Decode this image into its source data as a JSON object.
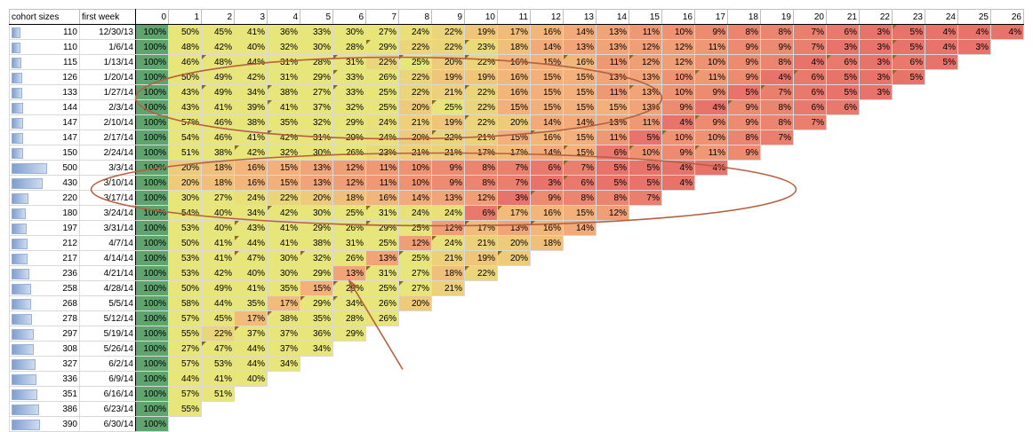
{
  "chart_data": {
    "type": "table",
    "title": "",
    "headers": {
      "cohort_sizes": "cohort sizes",
      "first_week": "first week",
      "periods": [
        "0",
        "1",
        "2",
        "3",
        "4",
        "5",
        "6",
        "7",
        "8",
        "9",
        "10",
        "11",
        "12",
        "13",
        "14",
        "15",
        "16",
        "17",
        "18",
        "19",
        "20",
        "21",
        "22",
        "23",
        "24",
        "25",
        "26"
      ]
    },
    "rows": [
      {
        "size": 110,
        "week": "12/30/13",
        "values": [
          100,
          50,
          45,
          41,
          36,
          33,
          30,
          27,
          24,
          22,
          19,
          17,
          16,
          14,
          13,
          11,
          10,
          9,
          8,
          8,
          7,
          6,
          3,
          5,
          4,
          4,
          4
        ]
      },
      {
        "size": 110,
        "week": "1/6/14",
        "values": [
          100,
          48,
          42,
          40,
          32,
          30,
          28,
          29,
          22,
          22,
          23,
          18,
          14,
          13,
          13,
          12,
          12,
          11,
          9,
          9,
          7,
          3,
          3,
          5,
          4,
          3
        ]
      },
      {
        "size": 115,
        "week": "1/13/14",
        "values": [
          100,
          46,
          48,
          44,
          31,
          28,
          31,
          22,
          25,
          20,
          22,
          16,
          15,
          16,
          11,
          12,
          12,
          10,
          9,
          8,
          4,
          6,
          3,
          6,
          5
        ]
      },
      {
        "size": 126,
        "week": "1/20/14",
        "values": [
          100,
          50,
          49,
          42,
          31,
          29,
          33,
          26,
          22,
          19,
          19,
          16,
          15,
          15,
          13,
          13,
          10,
          11,
          9,
          4,
          6,
          5,
          3,
          5
        ]
      },
      {
        "size": 133,
        "week": "1/27/14",
        "values": [
          100,
          43,
          49,
          34,
          38,
          27,
          33,
          25,
          22,
          21,
          22,
          16,
          15,
          15,
          11,
          13,
          10,
          9,
          5,
          7,
          6,
          5,
          3
        ]
      },
      {
        "size": 144,
        "week": "2/3/14",
        "values": [
          100,
          43,
          41,
          39,
          41,
          37,
          32,
          25,
          20,
          25,
          22,
          15,
          15,
          15,
          15,
          13,
          9,
          4,
          9,
          8,
          6,
          6
        ]
      },
      {
        "size": 147,
        "week": "2/10/14",
        "values": [
          100,
          57,
          46,
          38,
          35,
          32,
          29,
          24,
          21,
          19,
          22,
          20,
          14,
          14,
          13,
          11,
          4,
          9,
          9,
          8,
          7
        ]
      },
      {
        "size": 147,
        "week": "2/17/14",
        "values": [
          100,
          54,
          46,
          41,
          42,
          31,
          29,
          24,
          20,
          22,
          21,
          15,
          16,
          15,
          11,
          5,
          10,
          10,
          8,
          7
        ]
      },
      {
        "size": 150,
        "week": "2/24/14",
        "values": [
          100,
          51,
          38,
          42,
          32,
          30,
          26,
          23,
          21,
          21,
          17,
          17,
          14,
          15,
          6,
          10,
          9,
          11,
          9
        ]
      },
      {
        "size": 500,
        "week": "3/3/14",
        "values": [
          100,
          20,
          18,
          16,
          15,
          13,
          12,
          11,
          10,
          9,
          8,
          7,
          6,
          7,
          5,
          5,
          4,
          4
        ]
      },
      {
        "size": 430,
        "week": "3/10/14",
        "values": [
          100,
          20,
          18,
          16,
          15,
          13,
          12,
          11,
          10,
          9,
          8,
          7,
          3,
          6,
          5,
          5,
          4
        ]
      },
      {
        "size": 220,
        "week": "3/17/14",
        "values": [
          100,
          30,
          27,
          24,
          22,
          20,
          18,
          16,
          14,
          13,
          12,
          3,
          9,
          8,
          8,
          7
        ]
      },
      {
        "size": 180,
        "week": "3/24/14",
        "values": [
          100,
          54,
          40,
          34,
          42,
          30,
          25,
          31,
          24,
          24,
          6,
          17,
          16,
          15,
          12
        ]
      },
      {
        "size": 197,
        "week": "3/31/14",
        "values": [
          100,
          53,
          40,
          43,
          41,
          29,
          26,
          29,
          25,
          12,
          17,
          13,
          16,
          14
        ]
      },
      {
        "size": 212,
        "week": "4/7/14",
        "values": [
          100,
          50,
          41,
          44,
          41,
          38,
          31,
          25,
          12,
          24,
          21,
          20,
          18
        ]
      },
      {
        "size": 217,
        "week": "4/14/14",
        "values": [
          100,
          53,
          41,
          47,
          30,
          32,
          26,
          13,
          25,
          21,
          19,
          20
        ]
      },
      {
        "size": 236,
        "week": "4/21/14",
        "values": [
          100,
          53,
          42,
          40,
          30,
          29,
          13,
          31,
          27,
          18,
          22
        ]
      },
      {
        "size": 258,
        "week": "4/28/14",
        "values": [
          100,
          50,
          49,
          41,
          35,
          15,
          29,
          25,
          27,
          21
        ]
      },
      {
        "size": 268,
        "week": "5/5/14",
        "values": [
          100,
          58,
          44,
          35,
          17,
          29,
          34,
          26,
          20
        ]
      },
      {
        "size": 278,
        "week": "5/12/14",
        "values": [
          100,
          57,
          45,
          17,
          38,
          35,
          28,
          26
        ]
      },
      {
        "size": 297,
        "week": "5/19/14",
        "values": [
          100,
          55,
          22,
          37,
          37,
          36,
          29
        ]
      },
      {
        "size": 308,
        "week": "5/26/14",
        "values": [
          100,
          27,
          47,
          44,
          37,
          34
        ]
      },
      {
        "size": 327,
        "week": "6/2/14",
        "values": [
          100,
          57,
          53,
          44,
          34
        ]
      },
      {
        "size": 336,
        "week": "6/9/14",
        "values": [
          100,
          44,
          41,
          40
        ]
      },
      {
        "size": 351,
        "week": "6/16/14",
        "values": [
          100,
          57,
          51
        ]
      },
      {
        "size": 386,
        "week": "6/23/14",
        "values": [
          100,
          55
        ]
      },
      {
        "size": 390,
        "week": "6/30/14",
        "values": [
          100
        ]
      }
    ],
    "value_suffix": "%",
    "color_scale": {
      "high": "#e8e57a",
      "mid": "#f3b07a",
      "low": "#e8736a",
      "first_column": "#5fa36f"
    },
    "annotations": [
      "ellipse around cohorts 1/20/14 to 2/10/14",
      "ellipse around cohorts 3/3/14 to 3/24/14",
      "arrow pointing to 13% at 4/21/14 week 6"
    ]
  }
}
